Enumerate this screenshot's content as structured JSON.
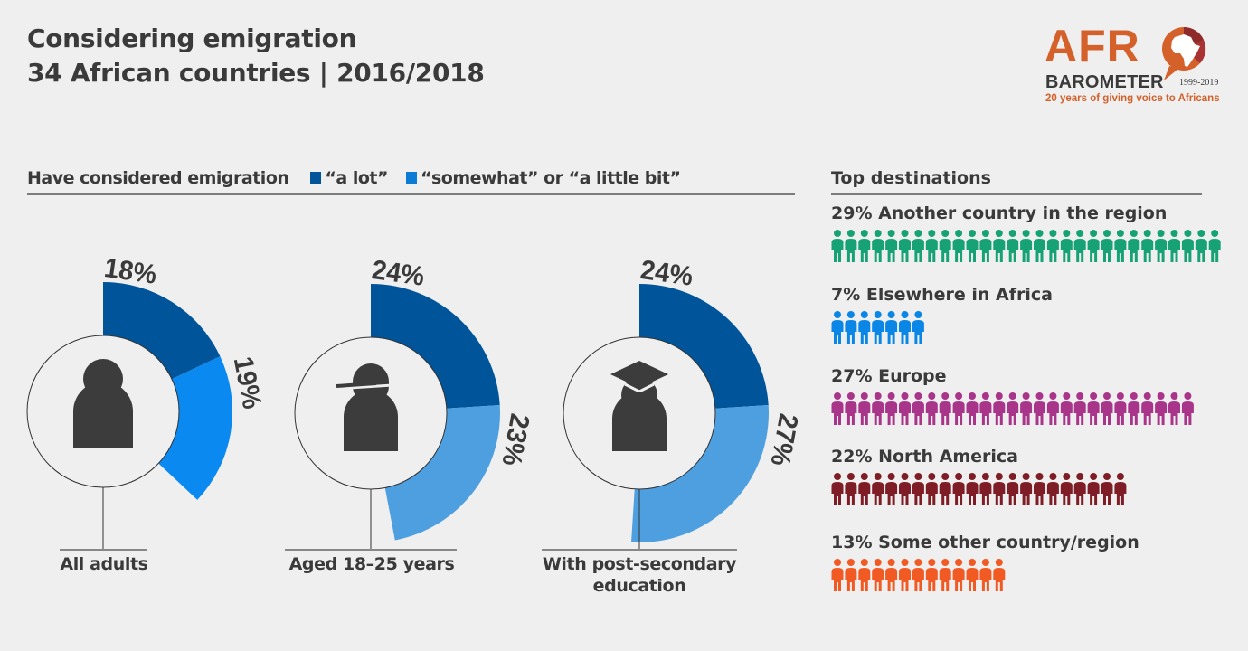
{
  "header": {
    "title_line1": "Considering emigration",
    "title_line2": "34 African countries | 2016/2018"
  },
  "logo": {
    "brand_top": "AFR",
    "brand_bottom": "BAROMETER",
    "years": "1999-2019",
    "tagline": "20 years of giving voice to Africans",
    "colors": {
      "orange": "#d4602a",
      "maroon": "#8e2a2a",
      "dark": "#3a3a3a"
    }
  },
  "left_section": {
    "heading": "Have considered emigration",
    "legend": [
      {
        "label": "“a lot”",
        "color": "#00549a"
      },
      {
        "label": "“somewhat” or “a little bit”",
        "color": "#0a7cd6"
      }
    ]
  },
  "right_section": {
    "heading": "Top destinations"
  },
  "chart_data": [
    {
      "type": "pie",
      "title": "Have considered emigration",
      "legend": [
        "“a lot”",
        "“somewhat” or “a little bit”"
      ],
      "legend_position": "top",
      "groups": [
        {
          "name": "All adults",
          "icon": "person-icon",
          "series": [
            {
              "name": "a lot",
              "value": 18,
              "label": "18%",
              "color": "#00549a"
            },
            {
              "name": "somewhat or a little bit",
              "value": 19,
              "label": "19%",
              "color": "#0a8af0"
            }
          ]
        },
        {
          "name": "Aged 18–25 years",
          "icon": "youth-cap-icon",
          "series": [
            {
              "name": "a lot",
              "value": 24,
              "label": "24%",
              "color": "#00549a"
            },
            {
              "name": "somewhat or a little bit",
              "value": 23,
              "label": "23%",
              "color": "#4d9fe0"
            }
          ]
        },
        {
          "name": "With post-secondary education",
          "label_lines": [
            "With post-secondary",
            "education"
          ],
          "icon": "graduate-icon",
          "series": [
            {
              "name": "a lot",
              "value": 24,
              "label": "24%",
              "color": "#00549a"
            },
            {
              "name": "somewhat or a little bit",
              "value": 27,
              "label": "27%",
              "color": "#4d9fe0"
            }
          ]
        }
      ]
    },
    {
      "type": "bar",
      "subtype": "pictogram",
      "title": "Top destinations",
      "unit": "%",
      "categories": [
        "Another country in the region",
        "Elsewhere in Africa",
        "Europe",
        "North America",
        "Some other country/region"
      ],
      "values": [
        29,
        7,
        27,
        22,
        13
      ],
      "labels": [
        "29% Another country in the region",
        "7% Elsewhere in Africa",
        "27% Europe",
        "22% North America",
        "13% Some other country/region"
      ],
      "colors": [
        "#17a275",
        "#0a86e6",
        "#a8358a",
        "#7e1d25",
        "#f25a24"
      ]
    }
  ]
}
